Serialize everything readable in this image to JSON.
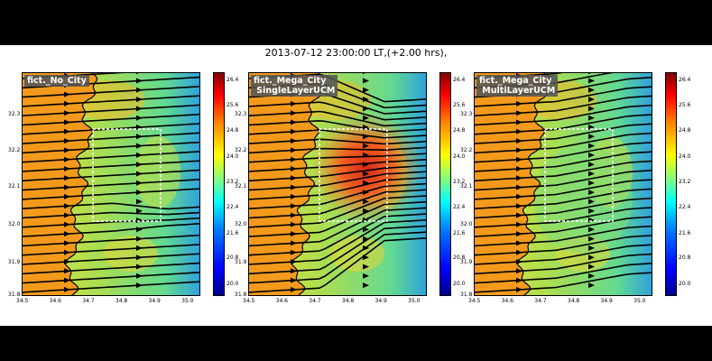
{
  "figure": {
    "suptitle": "2013-07-12 23:00:00 LT,(+2.00 hrs),",
    "panels": [
      {
        "label_line1": "fict._No_City",
        "label_line2": "",
        "variant": "nocity"
      },
      {
        "label_line1": "fict._Mega_City",
        "label_line2": "SingleLayerUCM",
        "variant": "single"
      },
      {
        "label_line1": "fict._Mega_City",
        "label_line2": "MultiLayerUCM",
        "variant": "multi"
      }
    ],
    "x_tick_labels": [
      "34.5",
      "34.6",
      "34.7",
      "34.8",
      "34.9",
      "35.0"
    ],
    "y_tick_labels": [
      "31.8",
      "31.9",
      "32.0",
      "32.1",
      "32.2",
      "32.3"
    ],
    "colorbar_tick_labels": [
      "20.0",
      "20.8",
      "21.6",
      "22.4",
      "23.2",
      "24.0",
      "24.8",
      "25.6",
      "26.4"
    ]
  },
  "chart_data": [
    {
      "type": "heatmap",
      "title": "fict._No_City",
      "xlim": [
        34.5,
        35.07
      ],
      "ylim": [
        31.8,
        32.5
      ],
      "colorbar_range": [
        19.4,
        26.4
      ],
      "overlay": "streamlines",
      "city_box": {
        "lon": [
          34.73,
          34.95
        ],
        "lat": [
          31.98,
          32.22
        ]
      }
    },
    {
      "type": "heatmap",
      "title": "fict._Mega_City SingleLayerUCM",
      "xlim": [
        34.5,
        35.07
      ],
      "ylim": [
        31.8,
        32.5
      ],
      "colorbar_range": [
        19.4,
        26.4
      ],
      "overlay": "streamlines",
      "city_box": {
        "lon": [
          34.73,
          34.95
        ],
        "lat": [
          31.98,
          32.22
        ]
      }
    },
    {
      "type": "heatmap",
      "title": "fict._Mega_City MultiLayerUCM",
      "xlim": [
        34.5,
        35.07
      ],
      "ylim": [
        31.8,
        32.5
      ],
      "colorbar_range": [
        19.4,
        26.4
      ],
      "overlay": "streamlines",
      "city_box": {
        "lon": [
          34.73,
          34.95
        ],
        "lat": [
          31.98,
          32.22
        ]
      }
    }
  ]
}
